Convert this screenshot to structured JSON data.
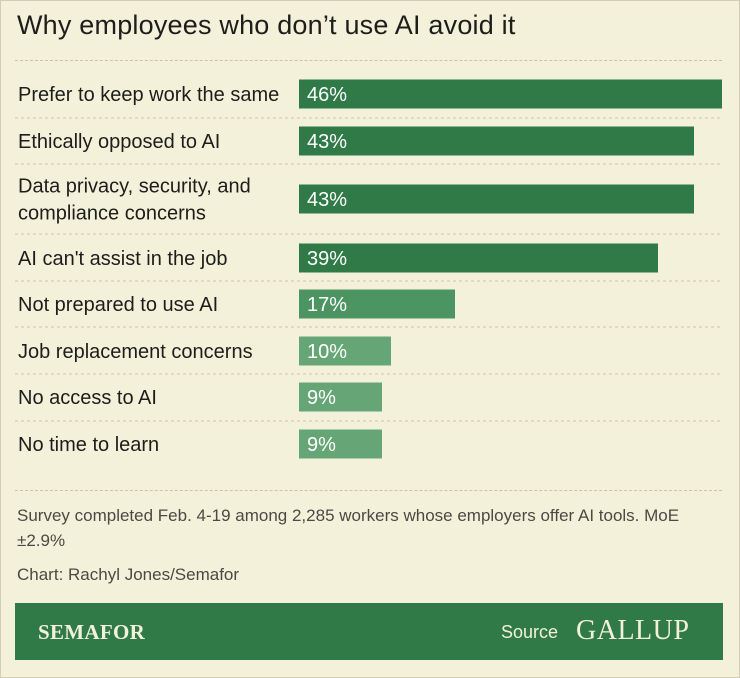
{
  "chart_data": {
    "type": "bar",
    "orientation": "horizontal",
    "title": "Why employees who don’t use AI avoid it",
    "categories": [
      [
        "Prefer to keep work the same"
      ],
      [
        "Ethically opposed to AI"
      ],
      [
        "Data privacy, security, and",
        "compliance concerns"
      ],
      [
        "AI can't assist in the job"
      ],
      [
        "Not prepared to use AI"
      ],
      [
        "Job replacement concerns"
      ],
      [
        "No access to AI"
      ],
      [
        "No time to learn"
      ]
    ],
    "values": [
      46,
      43,
      43,
      39,
      17,
      10,
      9,
      9
    ],
    "value_labels": [
      "46%",
      "43%",
      "43%",
      "39%",
      "17%",
      "10%",
      "9%",
      "9%"
    ],
    "xlim": [
      0,
      46
    ],
    "grid": false,
    "colors": {
      "dark": "#2f7a47",
      "medium": "#4c9563",
      "light": "#66a676"
    }
  },
  "footnote": "Survey completed Feb. 4-19 among 2,285 workers whose employers offer AI tools. MoE ±2.9%",
  "credit": "Chart: Rachyl Jones/Semafor",
  "footer": {
    "brand": "SEMAFOR",
    "source_label": "Source",
    "source_name": "GALLUP",
    "background": "#2f7a47"
  }
}
